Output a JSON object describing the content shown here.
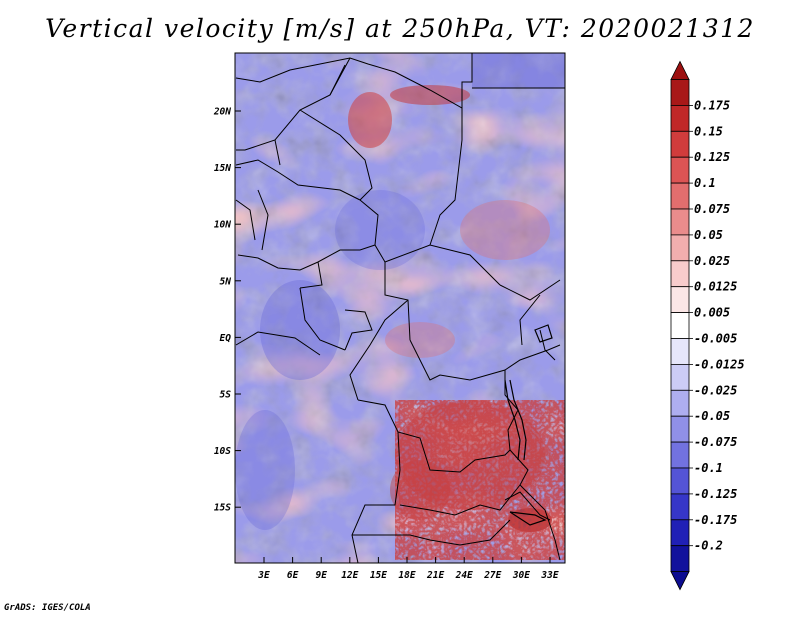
{
  "title": "Vertical velocity [m/s] at 250hPa, VT: 2020021312",
  "footer": "GrADS: IGES/COLA",
  "map": {
    "variable": "Vertical velocity",
    "units": "m/s",
    "level": "250hPa",
    "valid_time": "2020021312",
    "lon_labels": [
      "3E",
      "6E",
      "9E",
      "12E",
      "15E",
      "18E",
      "21E",
      "24E",
      "27E",
      "30E",
      "33E"
    ],
    "lat_labels": [
      "20N",
      "15N",
      "10N",
      "5N",
      "EQ",
      "5S",
      "10S",
      "15S"
    ]
  },
  "colorbar": {
    "labels": [
      "0.175",
      "0.15",
      "0.125",
      "0.1",
      "0.075",
      "0.05",
      "0.025",
      "0.0125",
      "0.005",
      "-0.005",
      "-0.0125",
      "-0.025",
      "-0.05",
      "-0.075",
      "-0.1",
      "-0.125",
      "-0.175",
      "-0.2"
    ],
    "colors": [
      "#a81818",
      "#c02828",
      "#d03c3c",
      "#dc5454",
      "#e26e6e",
      "#ea8c8c",
      "#f2aeae",
      "#f8cccc",
      "#fbe6e6",
      "#ffffff",
      "#e6e6fb",
      "#ccccf6",
      "#aeaef0",
      "#9090e8",
      "#7272e0",
      "#5454d6",
      "#3636c8",
      "#2020b6",
      "#12129c"
    ],
    "top_color": "#9c1010",
    "bottom_color": "#0c0c90"
  }
}
